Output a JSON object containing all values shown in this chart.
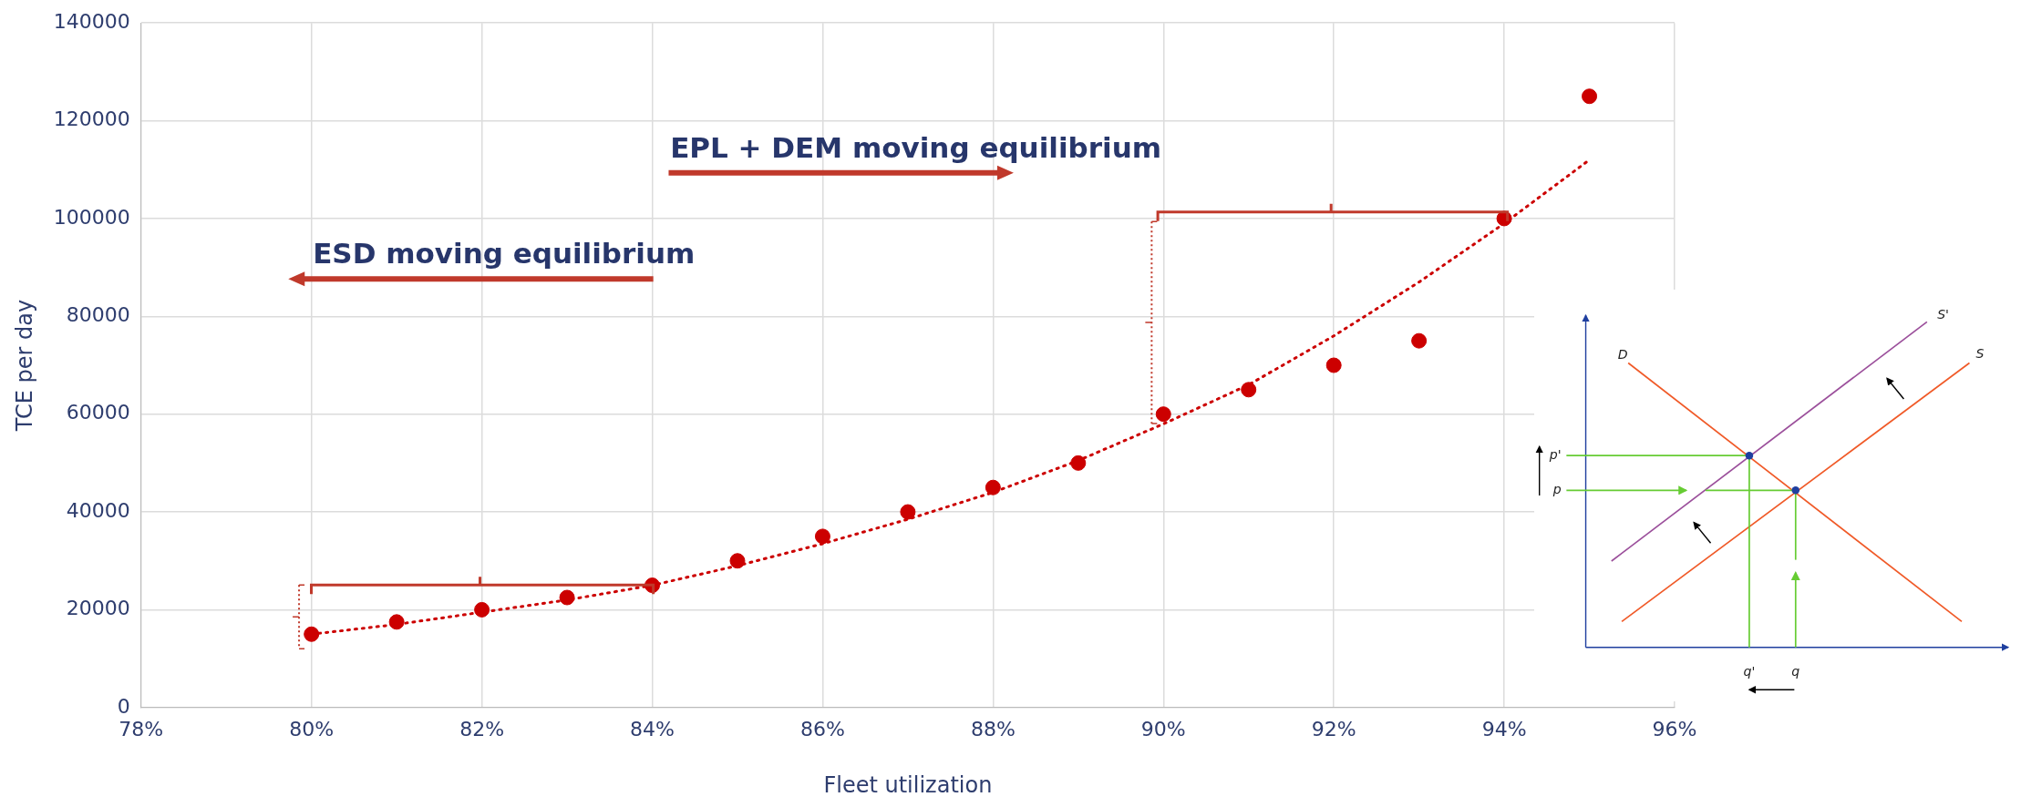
{
  "chart_data": {
    "type": "scatter",
    "xlabel": "Fleet utilization",
    "ylabel": "TCE per day",
    "xlim": [
      78,
      96
    ],
    "xticks": [
      {
        "value": 78,
        "label": "78%"
      },
      {
        "value": 80,
        "label": "80%"
      },
      {
        "value": 82,
        "label": "82%"
      },
      {
        "value": 84,
        "label": "84%"
      },
      {
        "value": 86,
        "label": "86%"
      },
      {
        "value": 88,
        "label": "88%"
      },
      {
        "value": 90,
        "label": "90%"
      },
      {
        "value": 92,
        "label": "92%"
      },
      {
        "value": 94,
        "label": "94%"
      },
      {
        "value": 96,
        "label": "96%"
      }
    ],
    "ylim": [
      0,
      140000
    ],
    "yticks": [
      0,
      20000,
      40000,
      60000,
      80000,
      100000,
      120000,
      140000
    ],
    "grid": true,
    "marker": "circle",
    "annotations": [
      "EPL + DEM moving equilibrium",
      "ESD moving equilibrium",
      "D",
      "S'",
      "S",
      "p'",
      "p",
      "q'",
      "q"
    ],
    "series": [
      {
        "color": "#cc0000",
        "x": [
          80,
          81,
          82,
          83,
          84,
          85,
          86,
          87,
          88,
          89,
          90,
          91,
          92,
          93,
          94,
          95
        ],
        "values": [
          15000,
          17500,
          20000,
          22500,
          25000,
          30000,
          35000,
          40000,
          45000,
          50000,
          60000,
          65000,
          70000,
          75000,
          100000,
          125000
        ]
      },
      {
        "type": "line",
        "line_style": "dotted",
        "marker": "none",
        "color": "#cc0000",
        "x": [
          80,
          81,
          82,
          83,
          84,
          85,
          86,
          87,
          88,
          89,
          90,
          91,
          92,
          93,
          94,
          95
        ],
        "values": [
          15000,
          17000,
          19500,
          22000,
          25000,
          29000,
          33500,
          38500,
          44000,
          50500,
          58000,
          66000,
          76000,
          87000,
          99000,
          112000
        ]
      }
    ]
  }
}
